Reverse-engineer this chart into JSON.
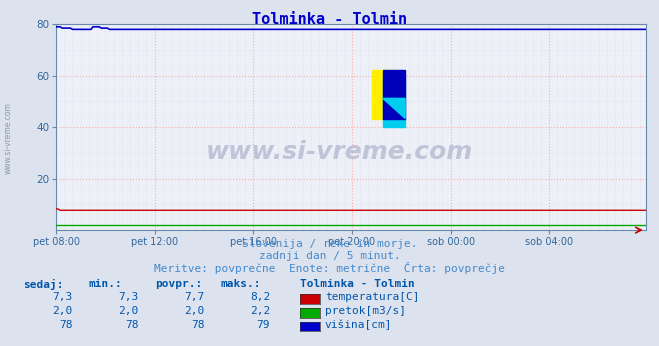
{
  "title": "Tolminka - Tolmin",
  "title_color": "#0000cc",
  "bg_color": "#dde3ee",
  "plot_bg_color": "#eef0f8",
  "grid_color_major": "#ffaaaa",
  "grid_color_minor": "#d8dce8",
  "x_labels": [
    "pet 08:00",
    "pet 12:00",
    "pet 16:00",
    "pet 20:00",
    "sob 00:00",
    "sob 04:00"
  ],
  "x_ticks_pos": [
    0,
    48,
    96,
    144,
    192,
    240
  ],
  "x_max": 287,
  "ylim": [
    0,
    80
  ],
  "yticks": [
    20,
    40,
    60,
    80
  ],
  "temp_avg": 7.7,
  "temp_max": 8.2,
  "flow_avg": 2.0,
  "height_avg": 78,
  "temp_color": "#cc0000",
  "flow_color": "#00aa00",
  "height_color": "#0000cc",
  "watermark_text": "www.si-vreme.com",
  "watermark_color": "#c0c4d8",
  "subtitle1": "Slovenija / reke in morje.",
  "subtitle2": "zadnji dan / 5 minut.",
  "subtitle3": "Meritve: povprečne  Enote: metrične  Črta: povprečje",
  "subtitle_color": "#4488cc",
  "ylabel_text": "www.si-vreme.com",
  "ylabel_color": "#8899aa",
  "legend_title": "Tolminka - Tolmin",
  "legend_labels": [
    "temperatura[C]",
    "pretok[m3/s]",
    "višina[cm]"
  ],
  "legend_colors": [
    "#cc0000",
    "#00aa00",
    "#0000cc"
  ],
  "table_headers": [
    "sedaj:",
    "min.:",
    "povpr.:",
    "maks.:"
  ],
  "table_data": [
    [
      "7,3",
      "7,3",
      "7,7",
      "8,2"
    ],
    [
      "2,0",
      "2,0",
      "2,0",
      "2,2"
    ],
    [
      "78",
      "78",
      "78",
      "79"
    ]
  ],
  "table_header_color": "#0055aa",
  "table_data_color": "#0055aa",
  "tick_color": "#336699",
  "axis_color": "#6688aa",
  "logo_yellow": "#ffee00",
  "logo_cyan": "#00ccee",
  "logo_blue": "#0000bb"
}
